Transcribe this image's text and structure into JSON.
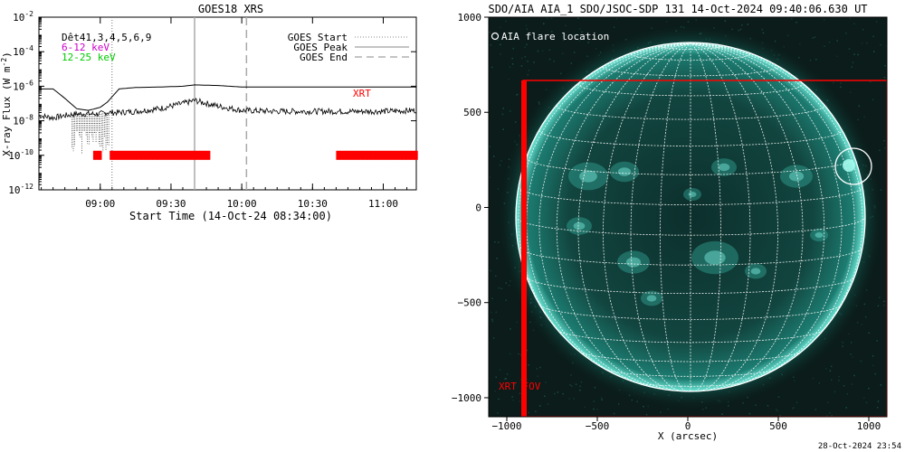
{
  "left_panel": {
    "title": "GOES18 XRS",
    "ylabel": "X-ray Flux (W m",
    "ylabel_sup": "-2",
    "ylabel_close": ")",
    "xlabel": "Start Time (14-Oct-24 08:34:00)",
    "legend_top": [
      "Dêt41,3,4,5,6,9",
      "6-12 keV",
      "12-25 keV"
    ],
    "legend_right": [
      "GOES Start",
      "GOES Peak",
      "GOES End"
    ],
    "xrt_tag": "XRT",
    "colors": {
      "axes": "#000000",
      "band1": "#cc00cc",
      "band2": "#00cc00",
      "xrt": "#ff0000",
      "peak_line": "#aaaaaa"
    }
  },
  "right_panel": {
    "title": "SDO/AIA AIA_1 SDO/JSOC-SDP 131 14-Oct-2024 09:40:06.630 UT",
    "legend": "AIA flare location",
    "xlabel": "X (arcsec)",
    "fov_label": "XRT FOV",
    "footer": "28-Oct-2024 23:54",
    "colors": {
      "disk": "#1aa596",
      "background": "#0a1917",
      "grid": "#ffffff",
      "fov": "#ff0000"
    }
  },
  "chart_data": [
    {
      "type": "line",
      "title": "GOES18 XRS",
      "xlabel": "Start Time (14-Oct-24 08:34:00)",
      "ylabel": "X-ray Flux (W m^-2)",
      "yscale": "log",
      "ylim": [
        1e-12,
        0.01
      ],
      "xlim": [
        "08:34",
        "11:14"
      ],
      "x_ticks": [
        "09:00",
        "09:30",
        "10:00",
        "10:30",
        "11:00"
      ],
      "y_ticks": [
        "10^-12",
        "10^-10",
        "10^-8",
        "10^-6",
        "10^-4",
        "10^-2"
      ],
      "series": [
        {
          "name": "6-12 keV",
          "x": [
            "08:34",
            "08:40",
            "08:45",
            "08:50",
            "08:55",
            "09:00",
            "09:03",
            "09:08",
            "09:15",
            "09:25",
            "09:35",
            "09:40",
            "09:50",
            "10:00",
            "10:15",
            "10:30",
            "10:45",
            "11:00",
            "11:14"
          ],
          "y": [
            7e-07,
            7e-07,
            2e-07,
            5e-08,
            4e-08,
            6e-08,
            1.2e-07,
            7e-07,
            8.5e-07,
            9e-07,
            1e-06,
            1.2e-06,
            1.1e-06,
            9e-07,
            9e-07,
            9e-07,
            9e-07,
            9e-07,
            9e-07
          ]
        },
        {
          "name": "12-25 keV",
          "x": [
            "08:34",
            "08:40",
            "08:45",
            "08:50",
            "08:55",
            "09:00",
            "09:03",
            "09:08",
            "09:15",
            "09:25",
            "09:35",
            "09:40",
            "09:50",
            "10:00",
            "10:15",
            "10:30",
            "10:45",
            "11:00",
            "11:14"
          ],
          "y": [
            2e-08,
            1.5e-08,
            2e-08,
            2.5e-08,
            2.5e-08,
            2.5e-08,
            3e-08,
            3e-08,
            3.5e-08,
            5e-08,
            1e-07,
            1.5e-07,
            7e-08,
            4e-08,
            3.5e-08,
            3.5e-08,
            3.5e-08,
            3.5e-08,
            4e-08
          ]
        }
      ],
      "vlines": [
        {
          "name": "GOES Start",
          "x": "09:05",
          "style": "dotted"
        },
        {
          "name": "GOES Peak",
          "x": "09:40",
          "style": "solid"
        },
        {
          "name": "GOES End",
          "x": "10:02",
          "style": "dashed"
        }
      ],
      "xrt_intervals": [
        [
          "08:57",
          "09:00"
        ],
        [
          "09:04",
          "09:46"
        ],
        [
          "10:40",
          "11:14"
        ]
      ]
    },
    {
      "type": "image",
      "title": "SDO/AIA AIA_1 SDO/JSOC-SDP 131 14-Oct-2024 09:40:06.630 UT",
      "xlabel": "X (arcsec)",
      "xlim": [
        -1100,
        1100
      ],
      "ylim": [
        -1100,
        1000
      ],
      "x_ticks": [
        -1000,
        -500,
        0,
        500,
        1000
      ],
      "y_ticks": [
        -1000,
        -500,
        0,
        500,
        1000
      ],
      "solar_radius_arcsec": 965,
      "flare_location": [
        900,
        280
      ],
      "xrt_fov": {
        "x": [
          -920,
          1100
        ],
        "y": [
          -1100,
          750
        ]
      }
    }
  ]
}
